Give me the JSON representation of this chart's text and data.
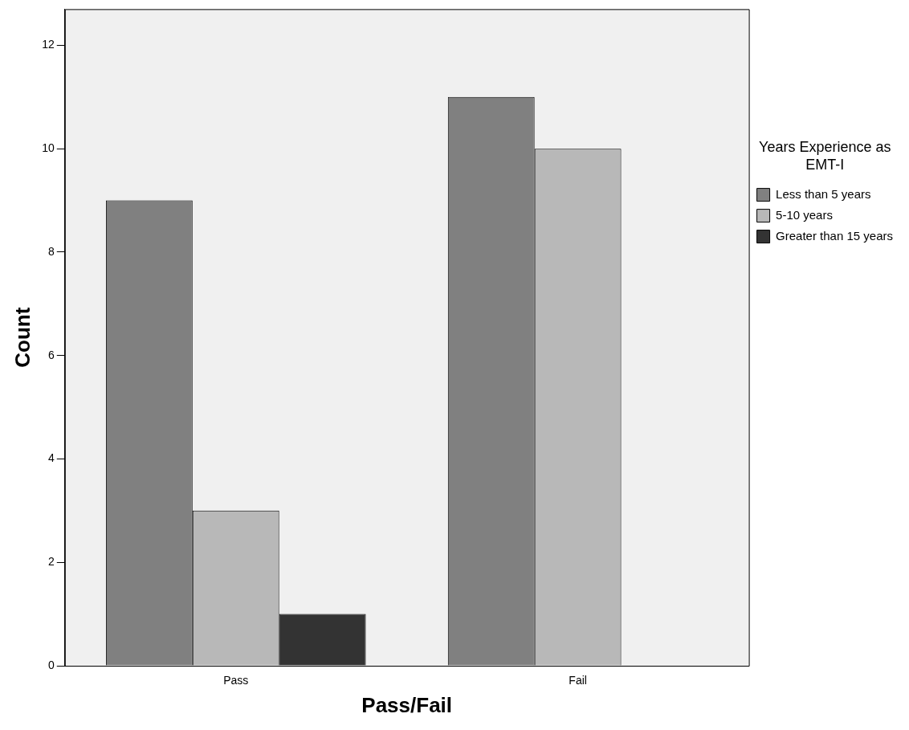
{
  "chart_data": {
    "type": "bar",
    "xlabel": "Pass/Fail",
    "ylabel": "Count",
    "legend_title": "Years Experience as EMT-I",
    "categories": [
      "Pass",
      "Fail"
    ],
    "series": [
      {
        "name": "Less than 5 years",
        "color": "#808080",
        "values": [
          9,
          11
        ]
      },
      {
        "name": "5-10 years",
        "color": "#b8b8b8",
        "values": [
          3,
          10
        ]
      },
      {
        "name": "Greater than 15 years",
        "color": "#333333",
        "values": [
          1,
          null
        ]
      }
    ],
    "ylim": [
      0,
      12.7
    ],
    "yticks": [
      0,
      2,
      4,
      6,
      8,
      10,
      12
    ],
    "grid": false,
    "legend": "right"
  }
}
